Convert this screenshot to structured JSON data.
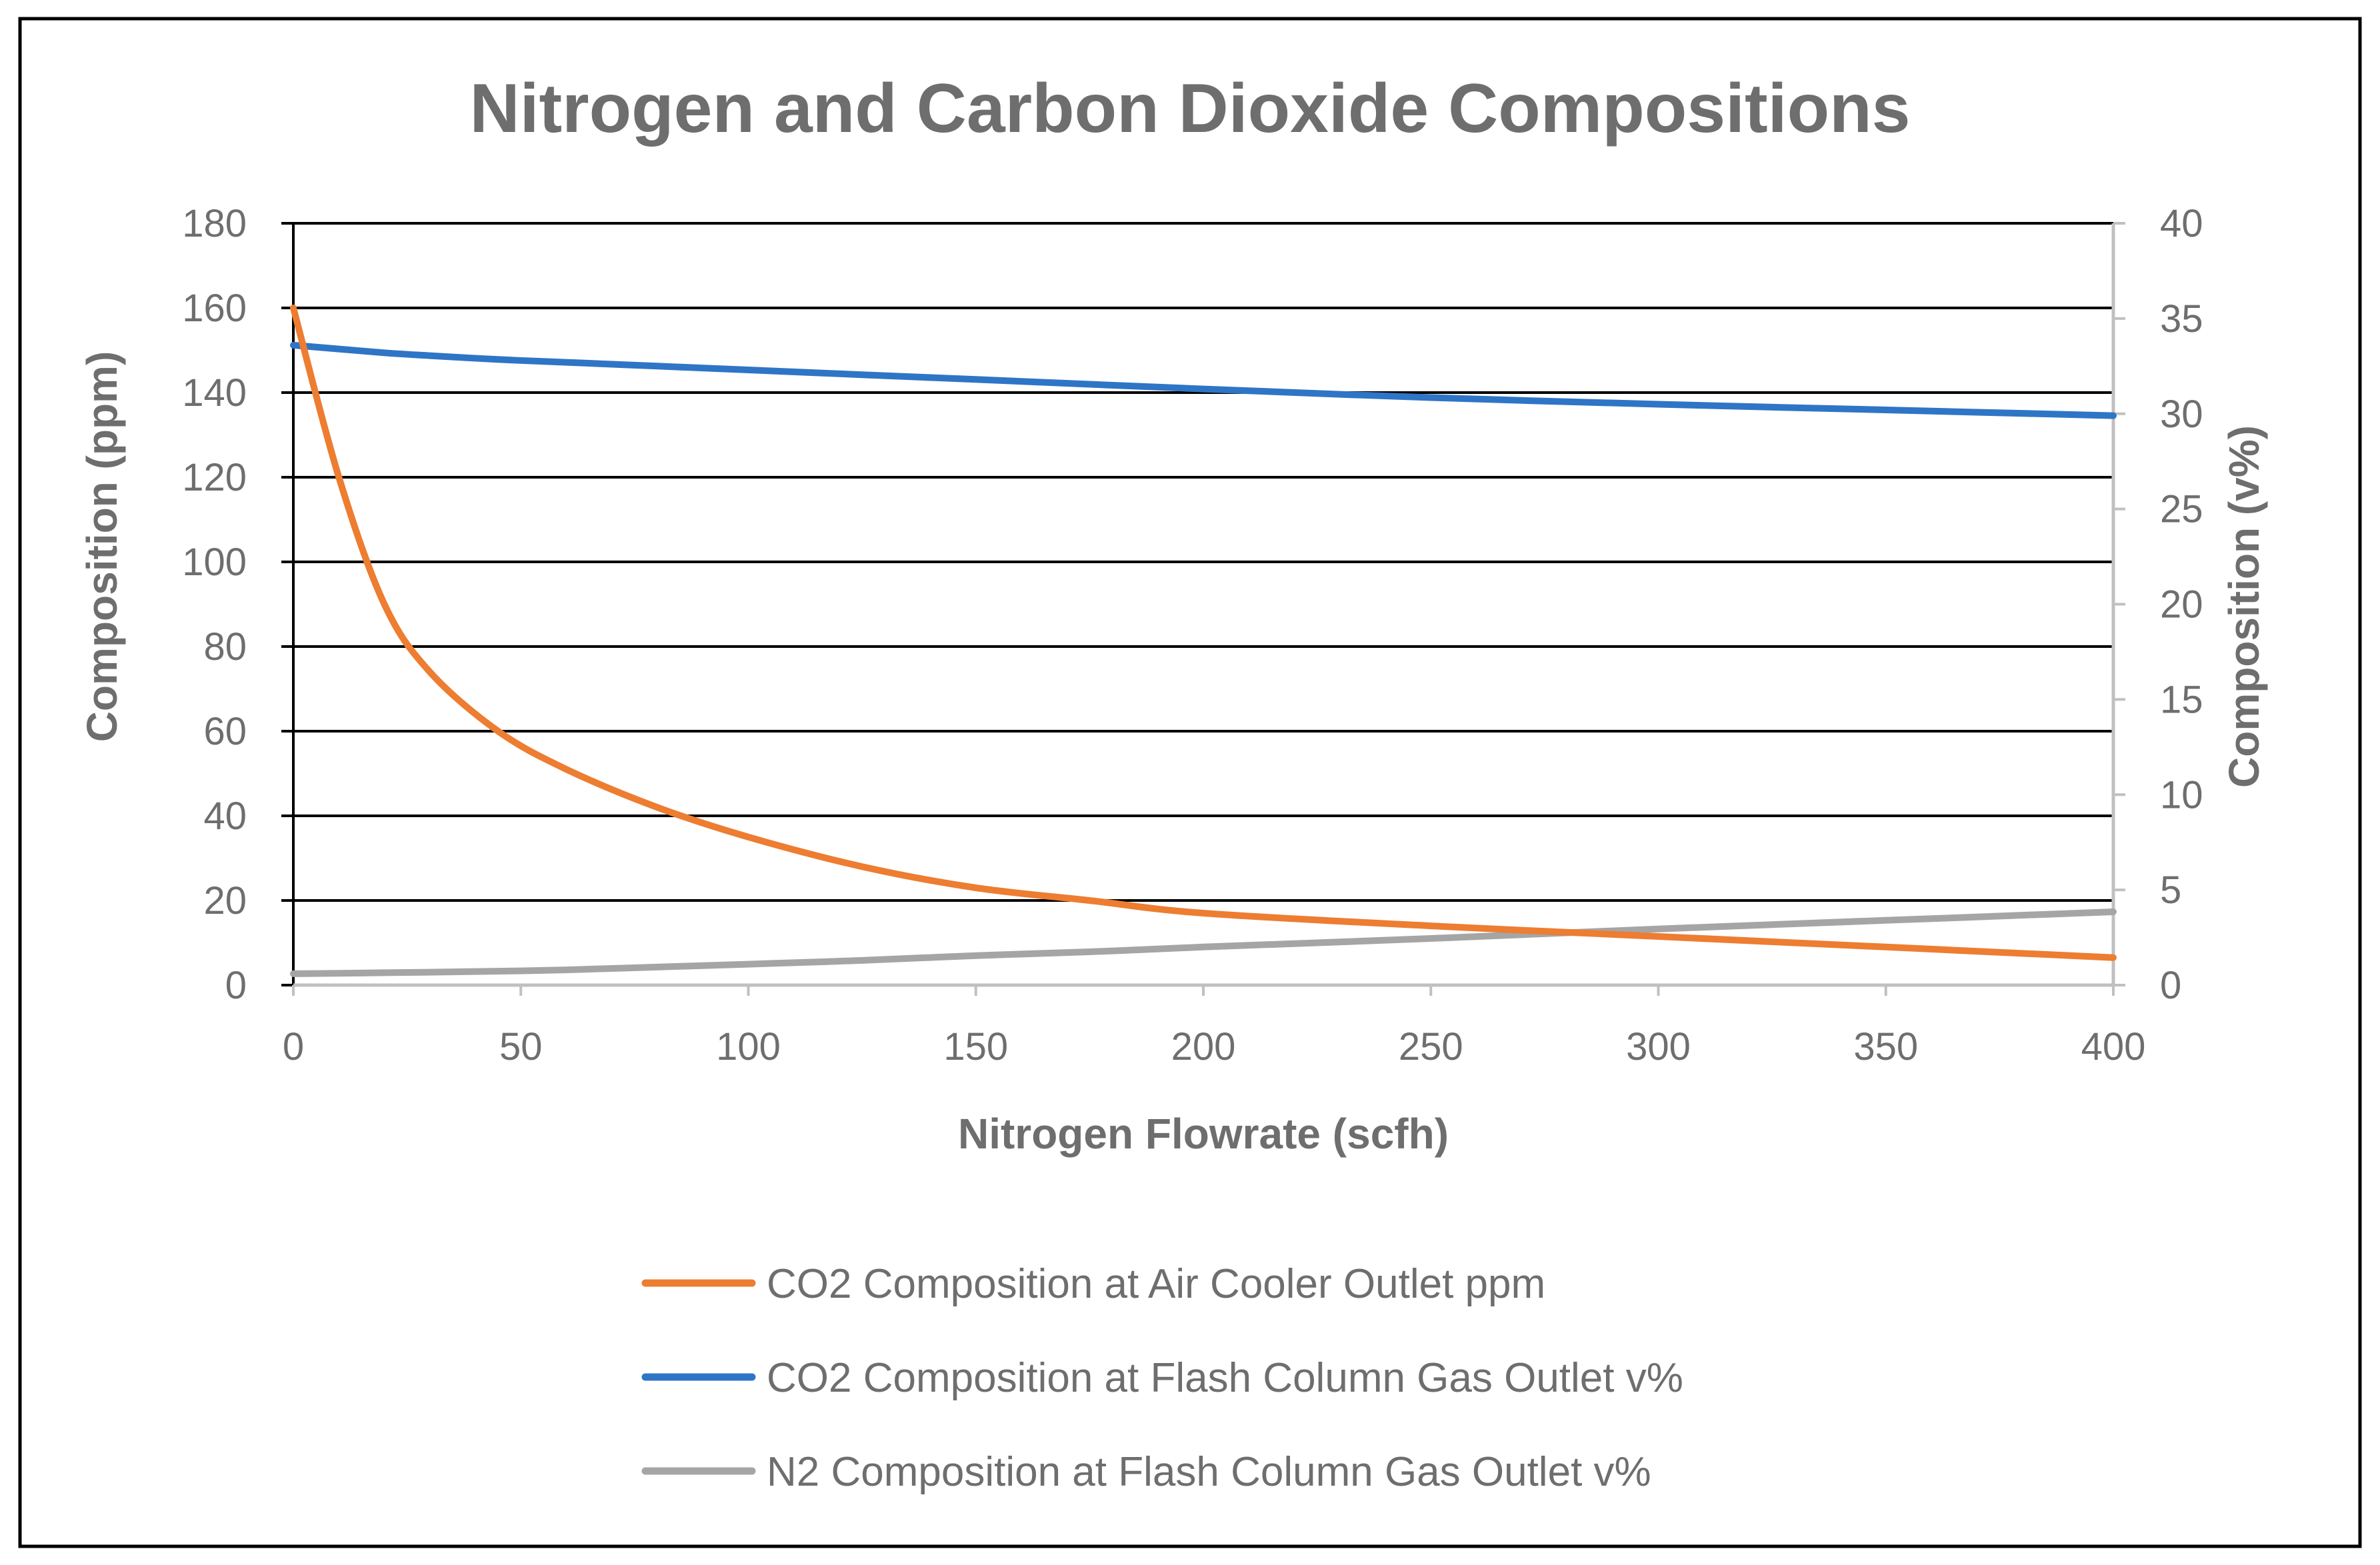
{
  "chart_data": {
    "type": "line",
    "title": "Nitrogen and Carbon Dioxide Compositions",
    "xlabel": "Nitrogen Flowrate (scfh)",
    "ylabel_left": "Composition (ppm)",
    "ylabel_right": "Composition (v%)",
    "xlim": [
      0,
      400
    ],
    "ylim_left": [
      0,
      180
    ],
    "ylim_right": [
      0,
      40
    ],
    "xticks": [
      "0",
      "50",
      "100",
      "150",
      "200",
      "250",
      "300",
      "350",
      "400"
    ],
    "yticks_left": [
      "0",
      "20",
      "40",
      "60",
      "80",
      "100",
      "120",
      "140",
      "160",
      "180"
    ],
    "yticks_right": [
      "0",
      "5",
      "10",
      "15",
      "20",
      "25",
      "30",
      "35",
      "40"
    ],
    "grid": true,
    "legend_position": "bottom",
    "x": [
      0,
      10,
      20,
      30,
      45,
      60,
      80,
      100,
      125,
      150,
      175,
      200,
      250,
      300,
      350,
      400
    ],
    "series": [
      {
        "name": "CO2 Composition at Air Cooler Outlet ppm",
        "axis": "left",
        "color": "#ed7d31",
        "values": [
          160,
          120,
          90,
          74,
          60,
          51,
          42,
          35,
          28,
          23,
          20,
          17,
          14,
          11.5,
          9,
          6.5
        ]
      },
      {
        "name": "CO2 Composition at Flash Column Gas Outlet v%",
        "axis": "right",
        "color": "#2e75c6",
        "values": [
          33.6,
          33.4,
          33.2,
          33.05,
          32.85,
          32.7,
          32.5,
          32.3,
          32.05,
          31.8,
          31.55,
          31.3,
          30.85,
          30.5,
          30.2,
          29.9
        ]
      },
      {
        "name": "N2 Composition at Flash Column Gas Outlet v%",
        "axis": "right",
        "color": "#a5a5a5",
        "values": [
          0.6,
          0.62,
          0.65,
          0.68,
          0.73,
          0.8,
          0.95,
          1.1,
          1.3,
          1.55,
          1.75,
          2.0,
          2.45,
          2.95,
          3.4,
          3.85
        ]
      }
    ]
  }
}
